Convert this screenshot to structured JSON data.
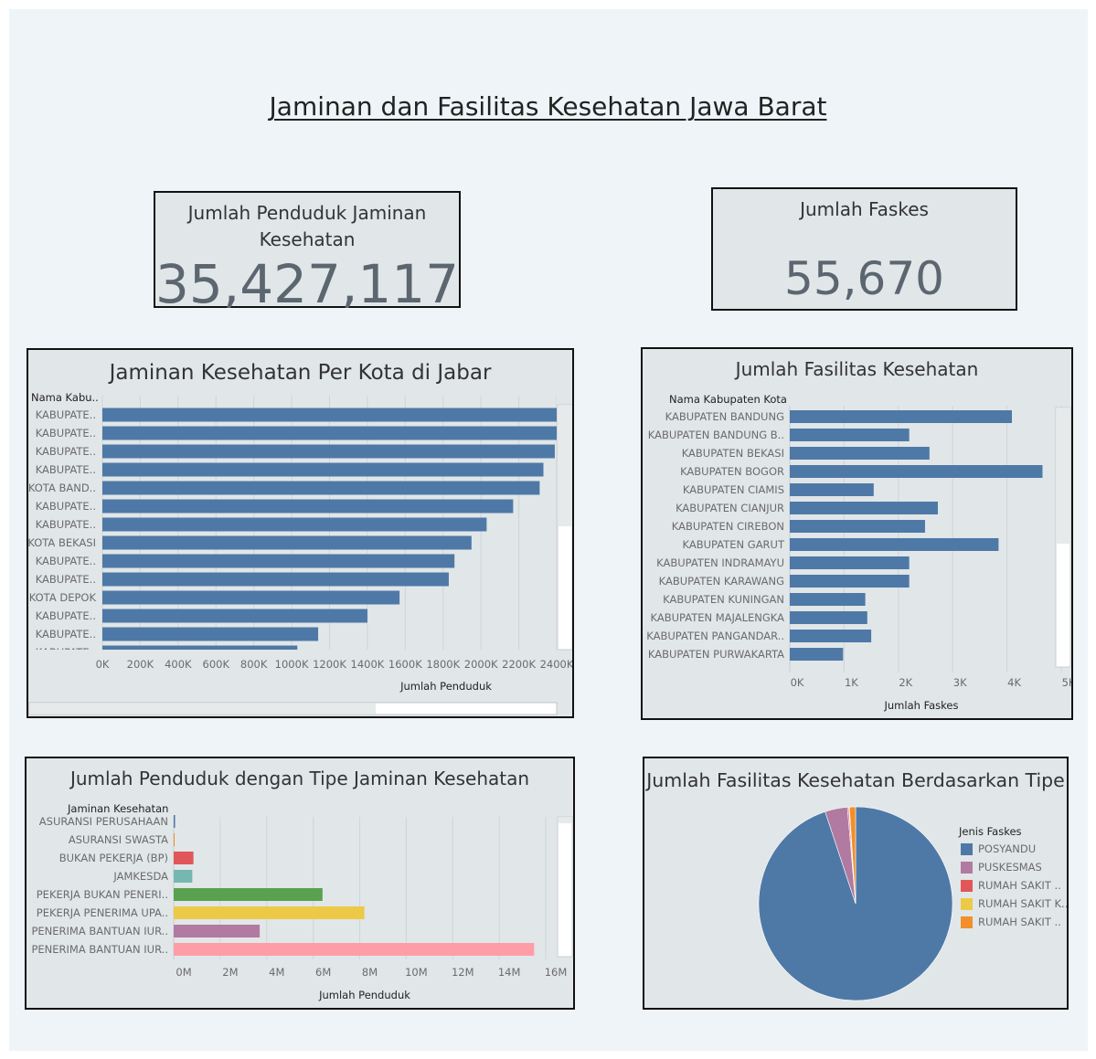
{
  "title": "Jaminan dan Fasilitas Kesehatan Jawa Barat",
  "kpi": {
    "penduduk_label": "Jumlah Penduduk Jaminan Kesehatan",
    "penduduk_value": "35,427,117",
    "faskes_label": "Jumlah Faskes",
    "faskes_value": "55,670"
  },
  "chart_data": [
    {
      "type": "bar",
      "title": "Jaminan Kesehatan Per Kota di Jabar",
      "row_header": "Nama Kabu..",
      "xlabel": "Jumlah Penduduk",
      "xlim": [
        0,
        2400000
      ],
      "ticks": [
        "0K",
        "200K",
        "400K",
        "600K",
        "800K",
        "1000K",
        "1200K",
        "1400K",
        "1600K",
        "1800K",
        "2000K",
        "2200K",
        "2400K"
      ],
      "categories": [
        "KABUPATE..",
        "KABUPATE..",
        "KABUPATE..",
        "KABUPATE..",
        "KOTA BAND..",
        "KABUPATE..",
        "KABUPATE..",
        "KOTA BEKASI",
        "KABUPATE..",
        "KABUPATE..",
        "KOTA DEPOK",
        "KABUPATE..",
        "KABUPATE..",
        "KABUPATE.."
      ],
      "values": [
        2450000,
        2450000,
        2390000,
        2330000,
        2310000,
        2170000,
        2030000,
        1950000,
        1860000,
        1830000,
        1570000,
        1400000,
        1140000,
        1030000
      ],
      "color": "#4e79a7"
    },
    {
      "type": "bar",
      "title": "Jumlah Fasilitas Kesehatan",
      "row_header": "Nama Kabupaten Kota",
      "xlabel": "Jumlah Faskes",
      "xlim": [
        0,
        5500
      ],
      "ticks": [
        "0K",
        "1K",
        "2K",
        "3K",
        "4K",
        "5K"
      ],
      "categories": [
        "KABUPATEN BANDUNG",
        "KABUPATEN BANDUNG B..",
        "KABUPATEN BEKASI",
        "KABUPATEN BOGOR",
        "KABUPATEN CIAMIS",
        "KABUPATEN CIANJUR",
        "KABUPATEN CIREBON",
        "KABUPATEN GARUT",
        "KABUPATEN INDRAMAYU",
        "KABUPATEN KARAWANG",
        "KABUPATEN KUNINGAN",
        "KABUPATEN MAJALENGKA",
        "KABUPATEN PANGANDAR..",
        "KABUPATEN PURWAKARTA"
      ],
      "values": [
        4500,
        2420,
        2830,
        5120,
        1700,
        3000,
        2740,
        4230,
        2420,
        2420,
        1530,
        1570,
        1650,
        1080
      ],
      "color": "#4e79a7"
    },
    {
      "type": "bar",
      "title": "Jumlah Penduduk dengan Tipe Jaminan Kesehatan",
      "row_header": "Jaminan Kesehatan",
      "xlabel": "Jumlah Penduduk",
      "xlim": [
        0,
        16000000
      ],
      "ticks": [
        "0M",
        "2M",
        "4M",
        "6M",
        "8M",
        "10M",
        "12M",
        "14M",
        "16M"
      ],
      "categories": [
        "ASURANSI PERUSAHAAN",
        "ASURANSI SWASTA",
        "BUKAN PEKERJA (BP)",
        "JAMKESDA",
        "PEKERJA BUKAN PENERI..",
        "PEKERJA PENERIMA UPA..",
        "PENERIMA BANTUAN IUR..",
        "PENERIMA BANTUAN IUR.."
      ],
      "values": [
        60000,
        40000,
        850000,
        800000,
        6400000,
        8200000,
        3700000,
        15500000
      ],
      "colors": [
        "#4e79a7",
        "#f28e2b",
        "#e15759",
        "#76b7b2",
        "#59a14f",
        "#edc948",
        "#b07aa1",
        "#ff9da7"
      ]
    },
    {
      "type": "pie",
      "title": "Jumlah Fasilitas Kesehatan Berdasarkan Tipe",
      "legend_title": "Jenis Faskes",
      "labels": [
        "POSYANDU",
        "PUSKESMAS",
        "RUMAH SAKIT ..",
        "RUMAH SAKIT K..",
        "RUMAH SAKIT .."
      ],
      "values": [
        52080,
        2050,
        120,
        60,
        560
      ],
      "colors": [
        "#4e79a7",
        "#b07aa1",
        "#e15759",
        "#edc948",
        "#f28e2b"
      ]
    }
  ]
}
